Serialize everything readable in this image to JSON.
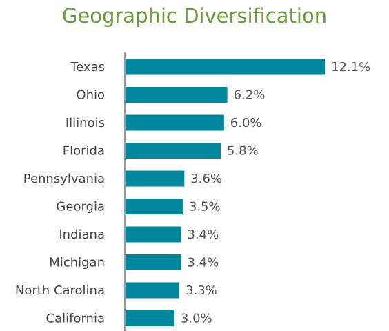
{
  "chart_data": {
    "type": "bar",
    "orientation": "horizontal",
    "title": "Geographic Diversification",
    "categories": [
      "Texas",
      "Ohio",
      "Illinois",
      "Florida",
      "Pennsylvania",
      "Georgia",
      "Indiana",
      "Michigan",
      "North Carolina",
      "California"
    ],
    "values": [
      12.1,
      6.2,
      6.0,
      5.8,
      3.6,
      3.5,
      3.4,
      3.4,
      3.3,
      3.0
    ],
    "value_labels": [
      "12.1%",
      "6.2%",
      "6.0%",
      "5.8%",
      "3.6%",
      "3.5%",
      "3.4%",
      "3.4%",
      "3.3%",
      "3.0%"
    ],
    "xlabel": "",
    "ylabel": "",
    "xlim": [
      0,
      12.1
    ],
    "grid": false,
    "legend": "none",
    "colors": {
      "bar": "#00879e",
      "title": "#6a9a3a",
      "axis": "#999999"
    }
  }
}
